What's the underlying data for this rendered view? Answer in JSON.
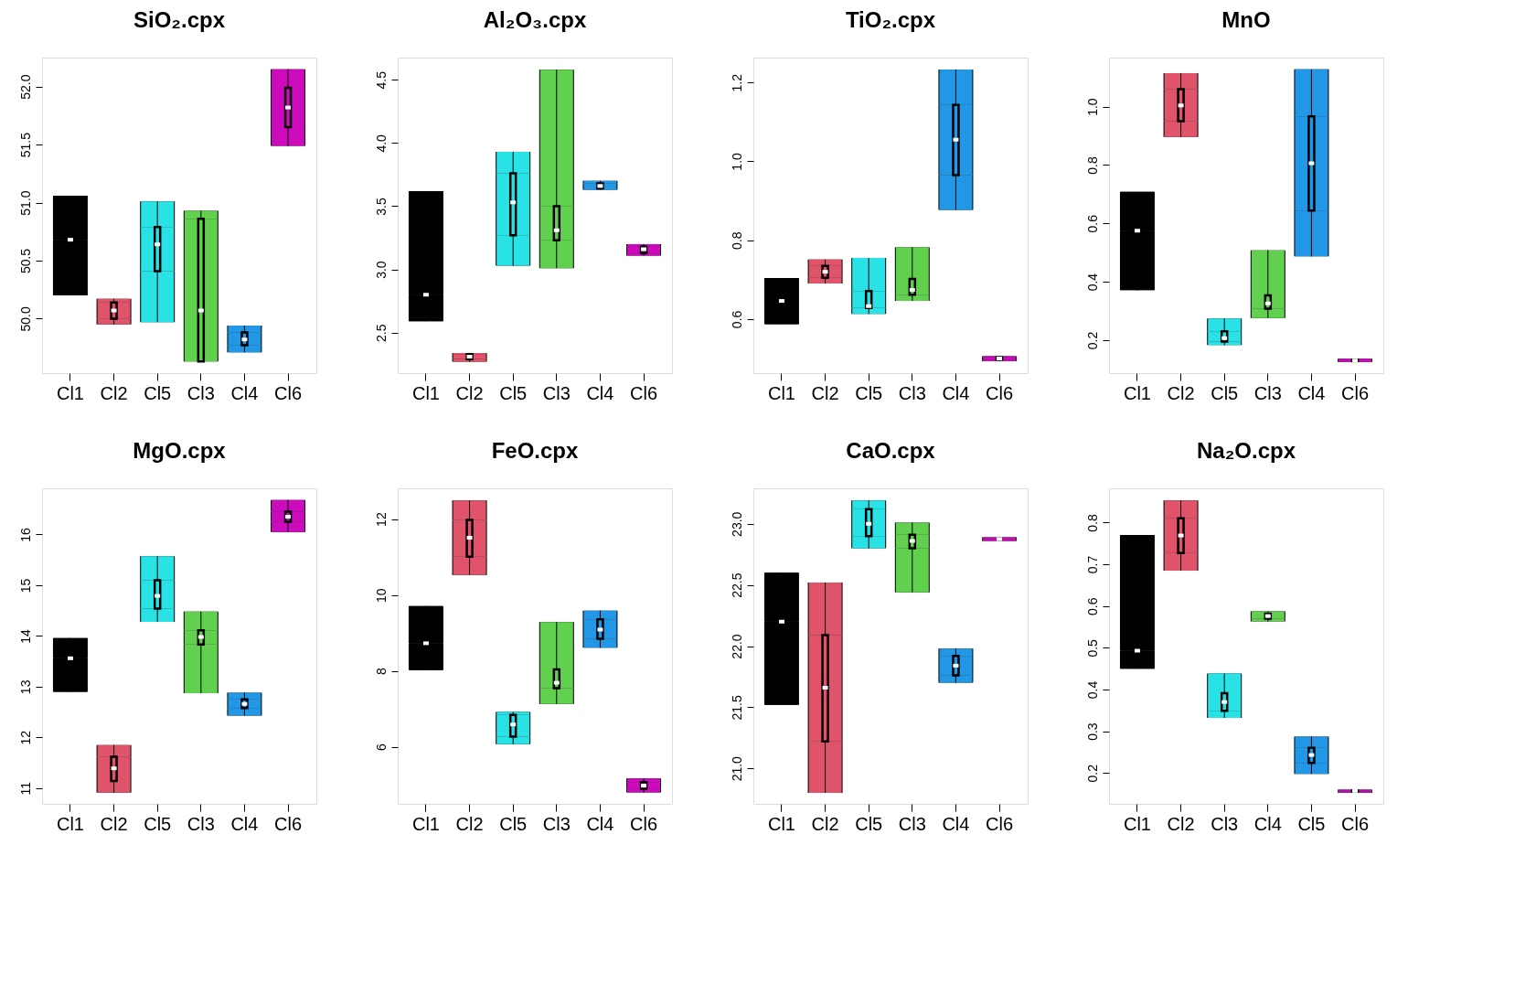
{
  "chart_data": [
    {
      "type": "box",
      "title": "SiO₂.cpx",
      "categories": [
        "Cl1",
        "Cl2",
        "Cl5",
        "Cl3",
        "Cl4",
        "Cl6"
      ],
      "colors": [
        "#000000",
        "#df536b",
        "#28e2e5",
        "#61d04f",
        "#2297e6",
        "#cd0bbc"
      ],
      "ylim": [
        49.53,
        52.25
      ],
      "yticks": [
        {
          "value": 50,
          "label": "50.0"
        },
        50.5,
        {
          "value": 51,
          "label": "51.0"
        },
        51.5,
        {
          "value": 52,
          "label": "52.0"
        }
      ],
      "boxes": [
        {
          "low": 50.2,
          "q1": 50.68,
          "median": 50.68,
          "q3": 50.68,
          "high": 51.06
        },
        {
          "low": 49.95,
          "q1": 50.0,
          "median": 50.07,
          "q3": 50.14,
          "high": 50.17
        },
        {
          "low": 49.97,
          "q1": 50.41,
          "median": 50.64,
          "q3": 50.79,
          "high": 51.01
        },
        {
          "low": 49.63,
          "q1": 49.63,
          "median": 50.07,
          "q3": 50.86,
          "high": 50.93
        },
        {
          "low": 49.71,
          "q1": 49.77,
          "median": 49.82,
          "q3": 49.88,
          "high": 49.94
        },
        {
          "low": 51.49,
          "q1": 51.65,
          "median": 51.82,
          "q3": 51.99,
          "high": 52.15
        }
      ]
    },
    {
      "type": "box",
      "title": "Al₂O₃.cpx",
      "categories": [
        "Cl1",
        "Cl2",
        "Cl5",
        "Cl3",
        "Cl4",
        "Cl6"
      ],
      "colors": [
        "#000000",
        "#df536b",
        "#28e2e5",
        "#61d04f",
        "#2297e6",
        "#cd0bbc"
      ],
      "ylim": [
        2.18,
        4.675
      ],
      "yticks": [
        2.5,
        {
          "value": 3,
          "label": "3.0"
        },
        3.5,
        {
          "value": 4,
          "label": "4.0"
        },
        4.5
      ],
      "boxes": [
        {
          "low": 2.59,
          "q1": 2.8,
          "median": 2.8,
          "q3": 2.8,
          "high": 3.62
        },
        {
          "low": 2.27,
          "q1": 2.29,
          "median": 2.31,
          "q3": 2.33,
          "high": 2.34
        },
        {
          "low": 3.03,
          "q1": 3.27,
          "median": 3.53,
          "q3": 3.76,
          "high": 3.93
        },
        {
          "low": 3.01,
          "q1": 3.23,
          "median": 3.31,
          "q3": 3.5,
          "high": 4.58
        },
        {
          "low": 3.63,
          "q1": 3.64,
          "median": 3.66,
          "q3": 3.68,
          "high": 3.7
        },
        {
          "low": 3.11,
          "q1": 3.13,
          "median": 3.16,
          "q3": 3.18,
          "high": 3.2
        }
      ]
    },
    {
      "type": "box",
      "title": "TiO₂.cpx",
      "categories": [
        "Cl1",
        "Cl2",
        "Cl5",
        "Cl3",
        "Cl4",
        "Cl6"
      ],
      "colors": [
        "#000000",
        "#df536b",
        "#28e2e5",
        "#61d04f",
        "#2297e6",
        "#cd0bbc"
      ],
      "ylim": [
        0.463,
        1.263
      ],
      "yticks": [
        0.6,
        0.8,
        {
          "value": 1,
          "label": "1.0"
        },
        1.2
      ],
      "boxes": [
        {
          "low": 0.587,
          "q1": 0.646,
          "median": 0.646,
          "q3": 0.646,
          "high": 0.704
        },
        {
          "low": 0.69,
          "q1": 0.705,
          "median": 0.72,
          "q3": 0.735,
          "high": 0.751
        },
        {
          "low": 0.613,
          "q1": 0.628,
          "median": 0.633,
          "q3": 0.671,
          "high": 0.755
        },
        {
          "low": 0.646,
          "q1": 0.662,
          "median": 0.674,
          "q3": 0.702,
          "high": 0.782
        },
        {
          "low": 0.877,
          "q1": 0.965,
          "median": 1.055,
          "q3": 1.143,
          "high": 1.233
        },
        {
          "low": 0.493,
          "q1": 0.497,
          "median": 0.5,
          "q3": 0.503,
          "high": 0.506
        }
      ]
    },
    {
      "type": "box",
      "title": "MnO",
      "categories": [
        "Cl1",
        "Cl2",
        "Cl5",
        "Cl3",
        "Cl4",
        "Cl6"
      ],
      "colors": [
        "#000000",
        "#df536b",
        "#28e2e5",
        "#61d04f",
        "#2297e6",
        "#cd0bbc"
      ],
      "ylim": [
        0.087,
        1.168
      ],
      "yticks": [
        0.2,
        0.4,
        0.6,
        0.8,
        {
          "value": 1,
          "label": "1.0"
        }
      ],
      "boxes": [
        {
          "low": 0.371,
          "q1": 0.575,
          "median": 0.575,
          "q3": 0.575,
          "high": 0.708
        },
        {
          "low": 0.896,
          "q1": 0.95,
          "median": 1.004,
          "q3": 1.06,
          "high": 1.115
        },
        {
          "low": 0.183,
          "q1": 0.195,
          "median": 0.207,
          "q3": 0.23,
          "high": 0.274
        },
        {
          "low": 0.276,
          "q1": 0.308,
          "median": 0.326,
          "q3": 0.353,
          "high": 0.508
        },
        {
          "low": 0.487,
          "q1": 0.644,
          "median": 0.806,
          "q3": 0.967,
          "high": 1.128
        },
        {
          "low": 0.125,
          "q1": 0.128,
          "median": 0.13,
          "q3": 0.133,
          "high": 0.136
        }
      ]
    },
    {
      "type": "box",
      "title": "MgO.cpx",
      "categories": [
        "Cl1",
        "Cl2",
        "Cl5",
        "Cl3",
        "Cl4",
        "Cl6"
      ],
      "colors": [
        "#000000",
        "#df536b",
        "#28e2e5",
        "#61d04f",
        "#2297e6",
        "#cd0bbc"
      ],
      "ylim": [
        10.69,
        16.91
      ],
      "yticks": [
        11,
        12,
        13,
        14,
        15,
        16
      ],
      "boxes": [
        {
          "low": 12.9,
          "q1": 13.56,
          "median": 13.56,
          "q3": 13.56,
          "high": 13.96
        },
        {
          "low": 10.91,
          "q1": 11.14,
          "median": 11.39,
          "q3": 11.62,
          "high": 11.85
        },
        {
          "low": 14.28,
          "q1": 14.54,
          "median": 14.79,
          "q3": 15.1,
          "high": 15.57
        },
        {
          "low": 12.87,
          "q1": 13.83,
          "median": 13.98,
          "q3": 14.11,
          "high": 14.48
        },
        {
          "low": 12.43,
          "q1": 12.58,
          "median": 12.66,
          "q3": 12.75,
          "high": 12.88
        },
        {
          "low": 16.05,
          "q1": 16.25,
          "median": 16.35,
          "q3": 16.45,
          "high": 16.68
        }
      ]
    },
    {
      "type": "box",
      "title": "FeO.cpx",
      "categories": [
        "Cl1",
        "Cl2",
        "Cl5",
        "Cl3",
        "Cl4",
        "Cl6"
      ],
      "colors": [
        "#000000",
        "#df536b",
        "#28e2e5",
        "#61d04f",
        "#2297e6",
        "#cd0bbc"
      ],
      "ylim": [
        4.5,
        12.81
      ],
      "yticks": [
        6,
        8,
        10,
        12
      ],
      "boxes": [
        {
          "low": 8.02,
          "q1": 8.73,
          "median": 8.73,
          "q3": 8.73,
          "high": 9.71
        },
        {
          "low": 10.53,
          "q1": 11.01,
          "median": 11.51,
          "q3": 11.98,
          "high": 12.49
        },
        {
          "low": 6.07,
          "q1": 6.27,
          "median": 6.59,
          "q3": 6.84,
          "high": 6.92
        },
        {
          "low": 7.13,
          "q1": 7.55,
          "median": 7.69,
          "q3": 8.04,
          "high": 9.29
        },
        {
          "low": 8.61,
          "q1": 8.85,
          "median": 9.09,
          "q3": 9.36,
          "high": 9.59
        },
        {
          "low": 4.8,
          "q1": 4.9,
          "median": 4.98,
          "q3": 5.07,
          "high": 5.17
        }
      ]
    },
    {
      "type": "box",
      "title": "CaO.cpx",
      "categories": [
        "Cl1",
        "Cl2",
        "Cl5",
        "Cl3",
        "Cl4",
        "Cl6"
      ],
      "colors": [
        "#000000",
        "#df536b",
        "#28e2e5",
        "#61d04f",
        "#2297e6",
        "#cd0bbc"
      ],
      "ylim": [
        20.71,
        23.29
      ],
      "yticks": [
        {
          "value": 21,
          "label": "21.0"
        },
        21.5,
        {
          "value": 22,
          "label": "22.0"
        },
        22.5,
        {
          "value": 23,
          "label": "23.0"
        }
      ],
      "boxes": [
        {
          "low": 21.52,
          "q1": 22.2,
          "median": 22.2,
          "q3": 22.2,
          "high": 22.6
        },
        {
          "low": 20.8,
          "q1": 21.22,
          "median": 21.66,
          "q3": 22.09,
          "high": 22.52
        },
        {
          "low": 22.8,
          "q1": 22.9,
          "median": 23.0,
          "q3": 23.12,
          "high": 23.19
        },
        {
          "low": 22.44,
          "q1": 22.8,
          "median": 22.86,
          "q3": 22.91,
          "high": 23.01
        },
        {
          "low": 21.7,
          "q1": 21.76,
          "median": 21.84,
          "q3": 21.92,
          "high": 21.98
        },
        {
          "low": 22.86,
          "q1": 22.875,
          "median": 22.875,
          "q3": 22.875,
          "high": 22.89
        }
      ]
    },
    {
      "type": "box",
      "title": "Na₂O.cpx",
      "categories": [
        "Cl1",
        "Cl2",
        "Cl3",
        "Cl4",
        "Cl5",
        "Cl6"
      ],
      "colors": [
        "#000000",
        "#df536b",
        "#28e2e5",
        "#61d04f",
        "#2297e6",
        "#cd0bbc"
      ],
      "ylim": [
        0.126,
        0.882
      ],
      "yticks": [
        0.2,
        0.3,
        0.4,
        0.5,
        0.6,
        0.7,
        0.8
      ],
      "boxes": [
        {
          "low": 0.45,
          "q1": 0.493,
          "median": 0.493,
          "q3": 0.493,
          "high": 0.77
        },
        {
          "low": 0.685,
          "q1": 0.727,
          "median": 0.769,
          "q3": 0.81,
          "high": 0.853
        },
        {
          "low": 0.332,
          "q1": 0.349,
          "median": 0.37,
          "q3": 0.391,
          "high": 0.438
        },
        {
          "low": 0.563,
          "q1": 0.57,
          "median": 0.576,
          "q3": 0.582,
          "high": 0.587
        },
        {
          "low": 0.198,
          "q1": 0.224,
          "median": 0.243,
          "q3": 0.26,
          "high": 0.287
        },
        {
          "low": 0.153,
          "q1": 0.155,
          "median": 0.157,
          "q3": 0.158,
          "high": 0.16
        }
      ]
    }
  ]
}
